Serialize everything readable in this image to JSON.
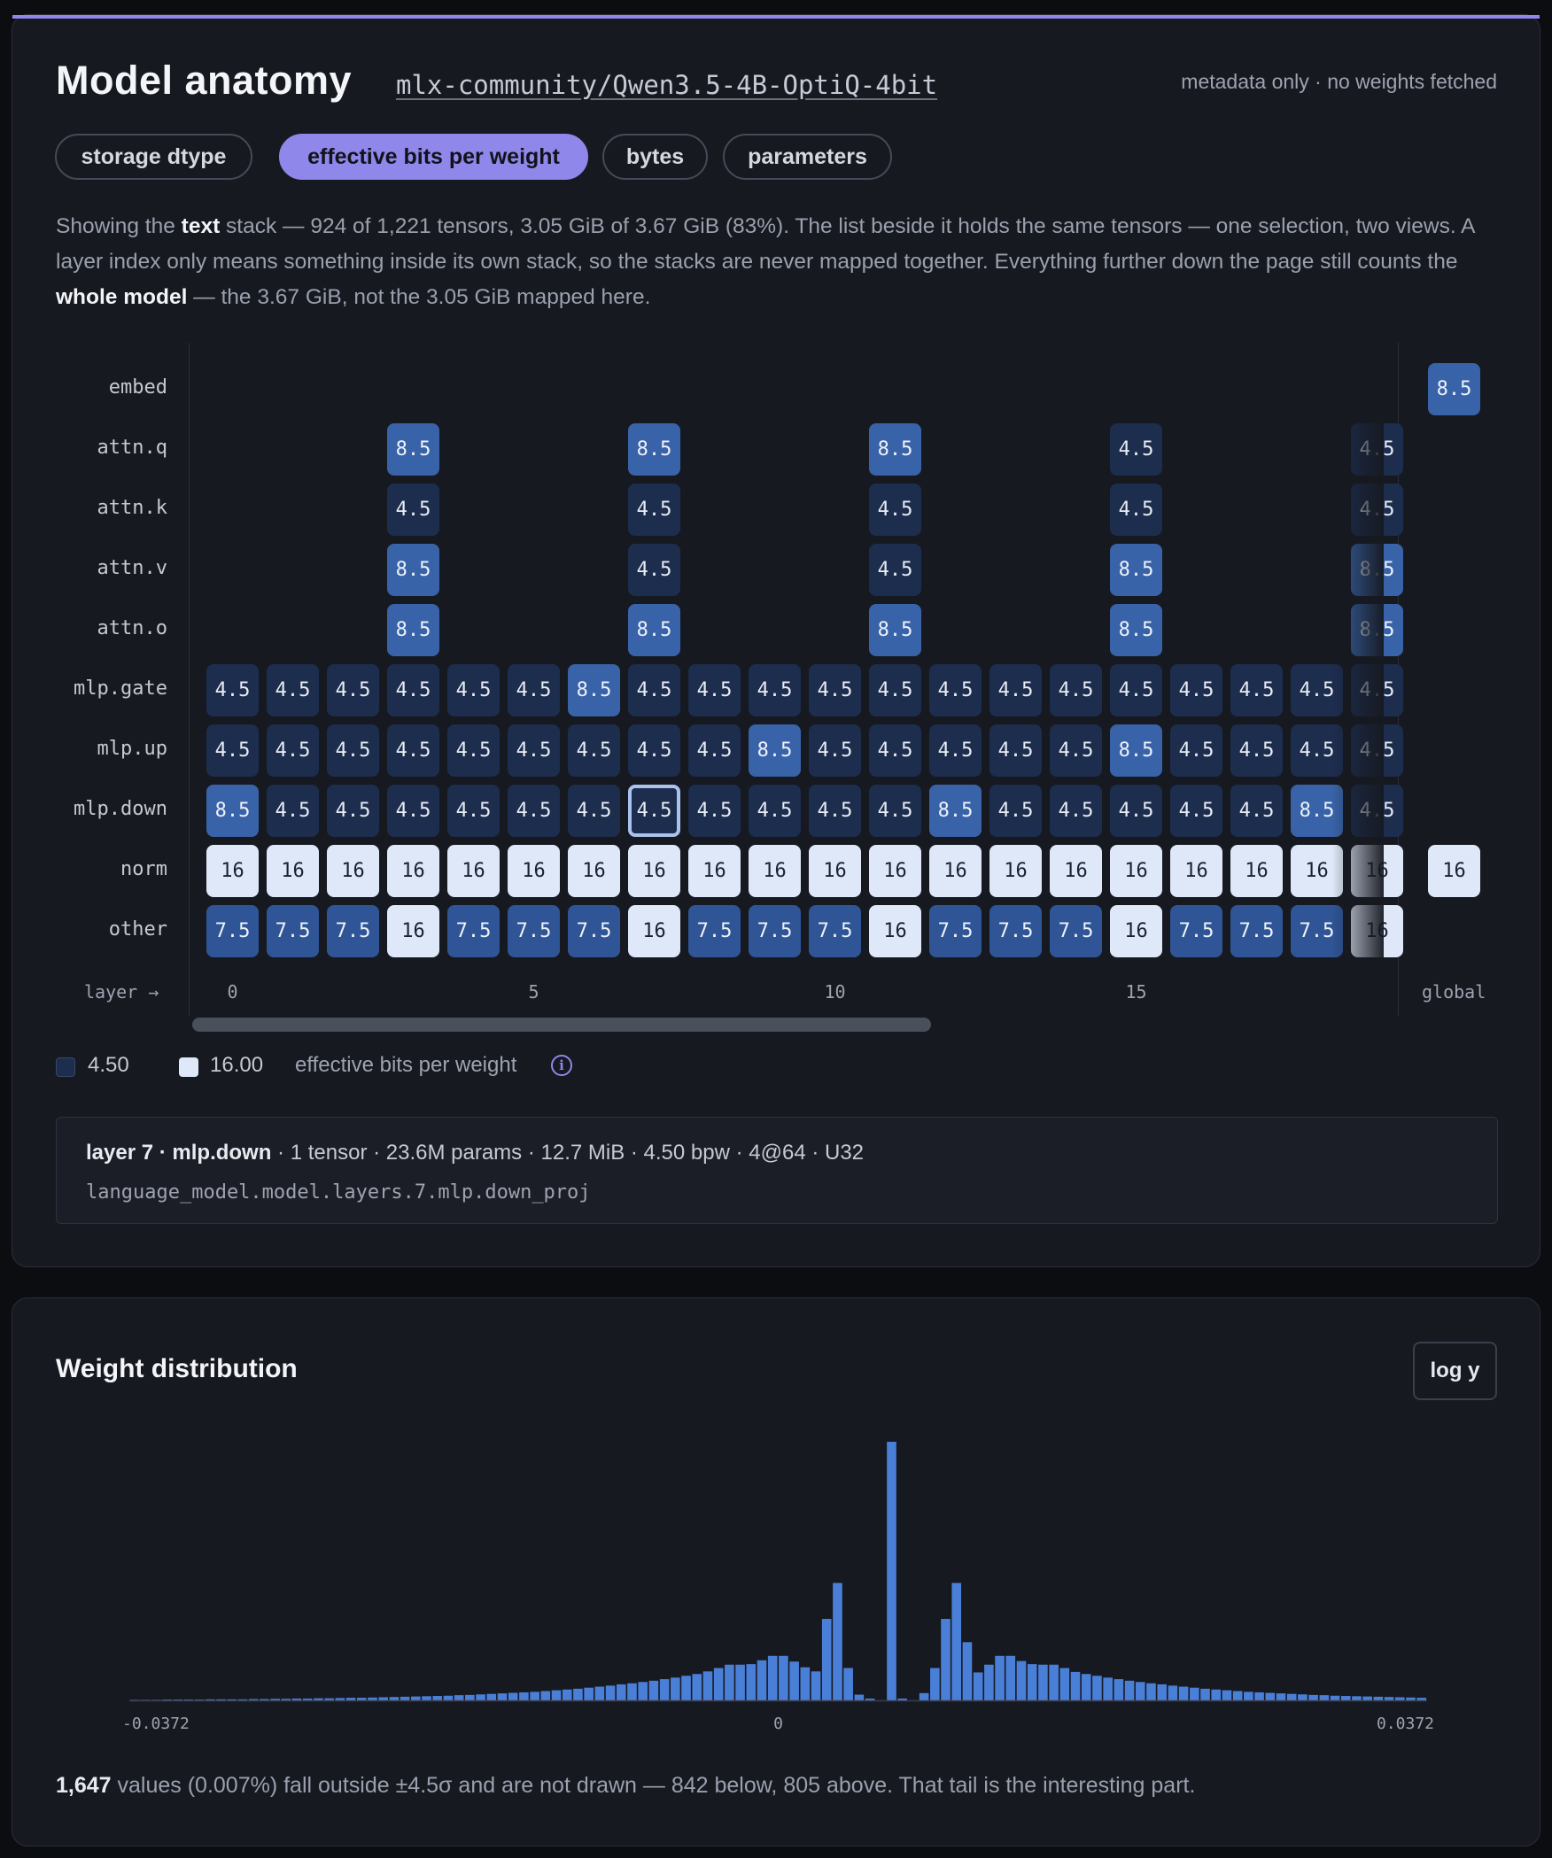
{
  "header": {
    "title": "Model anatomy",
    "repo": "mlx-community/Qwen3.5-4B-OptiQ-4bit",
    "meta_note": "metadata only · no weights fetched"
  },
  "tabs": [
    {
      "label": "storage dtype",
      "active": false
    },
    {
      "label": "effective bits per weight",
      "active": true
    },
    {
      "label": "bytes",
      "active": false
    },
    {
      "label": "parameters",
      "active": false
    }
  ],
  "summary": {
    "t1": "Showing the ",
    "stack": "text",
    "t2": " stack — 924 of 1,221 tensors, 3.05 GiB of 3.67 GiB (83%). The list beside it holds the same tensors — one selection, two views. A layer index only means something inside its own stack, so the stacks are never mapped together. Everything further down the page still counts the ",
    "whole": "whole model",
    "t3": " — the 3.67 GiB, not the 3.05 GiB mapped here."
  },
  "heatmap": {
    "rows": [
      "embed",
      "attn.q",
      "attn.k",
      "attn.v",
      "attn.o",
      "mlp.gate",
      "mlp.up",
      "mlp.down",
      "norm",
      "other"
    ],
    "axis_label": "layer →",
    "x_ticks": [
      "0",
      "5",
      "10",
      "15"
    ],
    "global_label": "global",
    "selected": {
      "layer": 7,
      "row": "mlp.down"
    },
    "cells": {
      "embed": [
        null,
        null,
        null,
        null,
        null,
        null,
        null,
        null,
        null,
        null,
        null,
        null,
        null,
        null,
        null,
        null,
        null,
        null,
        null,
        null
      ],
      "attn.q": [
        null,
        null,
        null,
        "8.5",
        null,
        null,
        null,
        "8.5",
        null,
        null,
        null,
        "8.5",
        null,
        null,
        null,
        "4.5",
        null,
        null,
        null,
        "4.5"
      ],
      "attn.k": [
        null,
        null,
        null,
        "4.5",
        null,
        null,
        null,
        "4.5",
        null,
        null,
        null,
        "4.5",
        null,
        null,
        null,
        "4.5",
        null,
        null,
        null,
        "4.5"
      ],
      "attn.v": [
        null,
        null,
        null,
        "8.5",
        null,
        null,
        null,
        "4.5",
        null,
        null,
        null,
        "4.5",
        null,
        null,
        null,
        "8.5",
        null,
        null,
        null,
        "8.5"
      ],
      "attn.o": [
        null,
        null,
        null,
        "8.5",
        null,
        null,
        null,
        "8.5",
        null,
        null,
        null,
        "8.5",
        null,
        null,
        null,
        "8.5",
        null,
        null,
        null,
        "8.5"
      ],
      "mlp.gate": [
        "4.5",
        "4.5",
        "4.5",
        "4.5",
        "4.5",
        "4.5",
        "8.5",
        "4.5",
        "4.5",
        "4.5",
        "4.5",
        "4.5",
        "4.5",
        "4.5",
        "4.5",
        "4.5",
        "4.5",
        "4.5",
        "4.5",
        "4.5"
      ],
      "mlp.up": [
        "4.5",
        "4.5",
        "4.5",
        "4.5",
        "4.5",
        "4.5",
        "4.5",
        "4.5",
        "4.5",
        "8.5",
        "4.5",
        "4.5",
        "4.5",
        "4.5",
        "4.5",
        "8.5",
        "4.5",
        "4.5",
        "4.5",
        "4.5"
      ],
      "mlp.down": [
        "8.5",
        "4.5",
        "4.5",
        "4.5",
        "4.5",
        "4.5",
        "4.5",
        "4.5",
        "4.5",
        "4.5",
        "4.5",
        "4.5",
        "8.5",
        "4.5",
        "4.5",
        "4.5",
        "4.5",
        "4.5",
        "8.5",
        "4.5"
      ],
      "norm": [
        "16",
        "16",
        "16",
        "16",
        "16",
        "16",
        "16",
        "16",
        "16",
        "16",
        "16",
        "16",
        "16",
        "16",
        "16",
        "16",
        "16",
        "16",
        "16",
        "16"
      ],
      "other": [
        "7.5",
        "7.5",
        "7.5",
        "16",
        "7.5",
        "7.5",
        "7.5",
        "16",
        "7.5",
        "7.5",
        "7.5",
        "16",
        "7.5",
        "7.5",
        "7.5",
        "16",
        "7.5",
        "7.5",
        "7.5",
        "16"
      ]
    },
    "global_cells": {
      "embed": "8.5",
      "norm": "16"
    }
  },
  "legend": {
    "min_label": "4.50",
    "max_label": "16.00",
    "caption": "effective bits per weight",
    "min_color": "#1d2d4e",
    "max_color": "#dfe8f8",
    "icon": "info-icon"
  },
  "detail": {
    "heading": "layer 7 · mlp.down",
    "stats": " · 1 tensor · 23.6M params · 12.7 MiB · 4.50 bpw · 4@64 · U32",
    "path": "language_model.model.layers.7.mlp.down_proj"
  },
  "distribution": {
    "title": "Weight distribution",
    "log_button": "log y",
    "outlier_count": "1,647",
    "outlier_text": " values (0.007%) fall outside ±4.5σ and are not drawn — 842 below, 805 above. That tail is the interesting part."
  },
  "chart_data": {
    "type": "bar",
    "title": "",
    "xlabel": "",
    "ylabel": "",
    "xlim": [
      -0.0372,
      0.0372
    ],
    "x_tick_labels": [
      "-0.0372",
      "0",
      "0.0372"
    ],
    "bin_count": 120,
    "bar_color": "#4a7fd8",
    "values": [
      0.2,
      0.2,
      0.2,
      0.3,
      0.3,
      0.3,
      0.3,
      0.4,
      0.4,
      0.4,
      0.4,
      0.5,
      0.5,
      0.6,
      0.6,
      0.7,
      0.7,
      0.8,
      0.8,
      0.9,
      1.0,
      1.0,
      1.1,
      1.2,
      1.3,
      1.4,
      1.5,
      1.6,
      1.7,
      1.8,
      2.0,
      2.1,
      2.3,
      2.5,
      2.7,
      2.9,
      3.1,
      3.3,
      3.6,
      3.9,
      4.2,
      4.5,
      4.9,
      5.3,
      5.7,
      6.2,
      6.6,
      7.1,
      7.6,
      8.2,
      8.8,
      9.5,
      10.2,
      11.2,
      12.5,
      13.8,
      13.8,
      14.0,
      15.5,
      17.2,
      17.2,
      15.0,
      12.8,
      11.2,
      31.5,
      45.4,
      12.5,
      2.2,
      0.7,
      0.0,
      100.0,
      0.7,
      0.0,
      2.8,
      12.5,
      31.5,
      45.4,
      22.5,
      10.8,
      13.8,
      17.2,
      17.2,
      15.2,
      14.0,
      13.8,
      13.8,
      12.5,
      11.0,
      10.2,
      9.5,
      8.8,
      8.2,
      7.6,
      7.1,
      6.6,
      6.2,
      5.7,
      5.3,
      4.9,
      4.5,
      4.2,
      3.9,
      3.6,
      3.3,
      3.1,
      2.9,
      2.7,
      2.5,
      2.3,
      2.1,
      2.0,
      1.8,
      1.7,
      1.6,
      1.5,
      1.4,
      1.3,
      1.2,
      1.1,
      1.0
    ]
  }
}
